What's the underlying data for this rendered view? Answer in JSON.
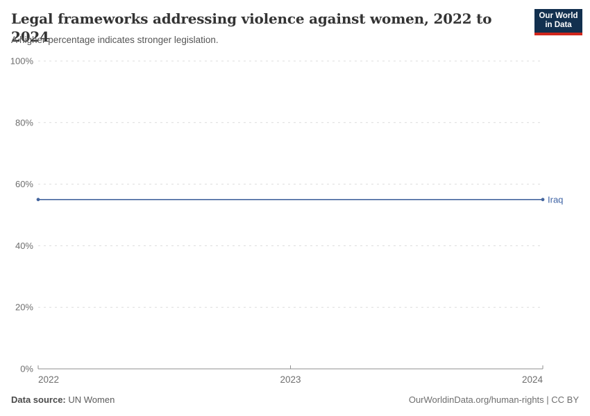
{
  "header": {
    "title": "Legal frameworks addressing violence against women, 2022 to 2024",
    "subtitle": "A higher percentage indicates stronger legislation.",
    "logo_line1": "Our World",
    "logo_line2": "in Data"
  },
  "chart_data": {
    "type": "line",
    "title": "Legal frameworks addressing violence against women, 2022 to 2024",
    "xlabel": "",
    "ylabel": "",
    "xlim": [
      2022,
      2024
    ],
    "ylim": [
      0,
      100
    ],
    "grid": "horizontal dashed gridlines on",
    "legend_position": "label at right end of line",
    "xticks": [
      {
        "value": 2022,
        "label": "2022"
      },
      {
        "value": 2023,
        "label": "2023"
      },
      {
        "value": 2024,
        "label": "2024"
      }
    ],
    "yticks": [
      {
        "value": 0,
        "label": "0%"
      },
      {
        "value": 20,
        "label": "20%"
      },
      {
        "value": 40,
        "label": "40%"
      },
      {
        "value": 60,
        "label": "60%"
      },
      {
        "value": 80,
        "label": "80%"
      },
      {
        "value": 100,
        "label": "100%"
      }
    ],
    "series": [
      {
        "name": "Iraq",
        "color": "#44659e",
        "points": [
          {
            "x": 2022,
            "y": 55
          },
          {
            "x": 2024,
            "y": 55
          }
        ]
      }
    ]
  },
  "footer": {
    "source_label": "Data source:",
    "source_value": " UN Women",
    "attribution": "OurWorldinData.org/human-rights | CC BY"
  },
  "colors": {
    "brand_navy": "#12304f",
    "brand_red": "#d0261c",
    "line": "#44659e",
    "series_label": "#3e63a4",
    "grid": "#dcdcdc",
    "axis": "#8f8f8f",
    "tick_text": "#6e6e6e",
    "title_text": "#343434",
    "subtitle_text": "#555555",
    "footer_text": "#5b5b5b"
  }
}
